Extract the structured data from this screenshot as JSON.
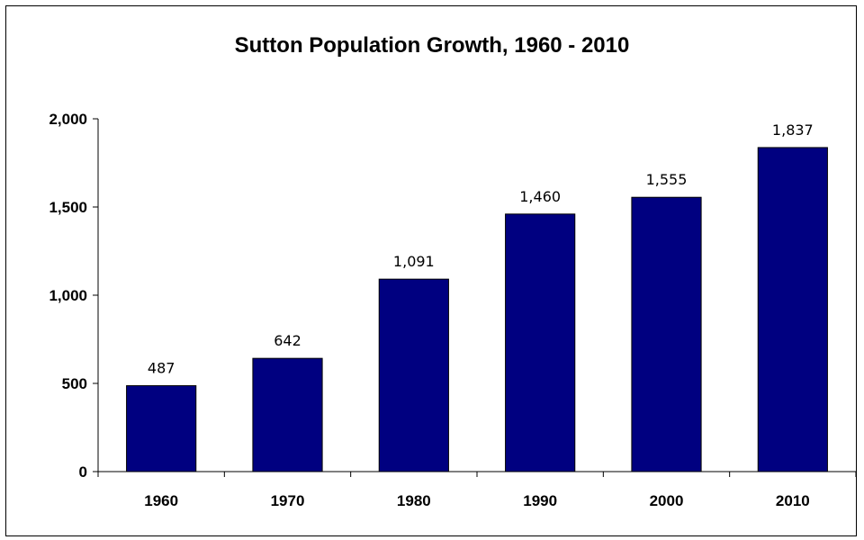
{
  "chart_data": {
    "type": "bar",
    "title": "Sutton Population Growth, 1960 - 2010",
    "categories": [
      "1960",
      "1970",
      "1980",
      "1990",
      "2000",
      "2010"
    ],
    "values": [
      487,
      642,
      1091,
      1460,
      1555,
      1837
    ],
    "data_labels": [
      "487",
      "642",
      "1,091",
      "1,460",
      "1,555",
      "1,837"
    ],
    "yticks": [
      0,
      500,
      1000,
      1500,
      2000
    ],
    "ytick_labels": [
      "0",
      "500",
      "1,000",
      "1,500",
      "2,000"
    ],
    "ylim": [
      0,
      2000
    ],
    "xlabel": "",
    "ylabel": "",
    "grid": false,
    "legend": "none",
    "colors": {
      "bar_fill": "#000080",
      "bar_stroke": "#000000",
      "axis": "#000000"
    }
  }
}
